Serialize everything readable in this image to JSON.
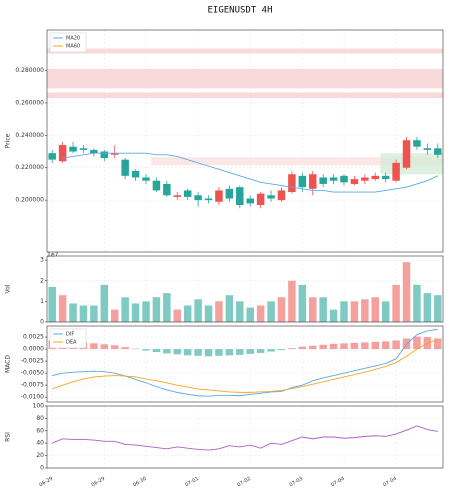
{
  "chart_data": [
    {
      "type": "candlestick",
      "title": "EIGENUSDT  4H",
      "ylabel": "Price",
      "up_color": "#ef5350",
      "down_color": "#26a69a",
      "open": [
        0.229,
        0.224,
        0.233,
        0.232,
        0.231,
        0.23,
        0.228,
        0.225,
        0.218,
        0.214,
        0.212,
        0.21,
        0.202,
        0.206,
        0.203,
        0.201,
        0.199,
        0.207,
        0.208,
        0.201,
        0.197,
        0.203,
        0.2,
        0.205,
        0.215,
        0.207,
        0.214,
        0.214,
        0.215,
        0.21,
        0.212,
        0.213,
        0.215,
        0.212,
        0.22,
        0.237,
        0.232,
        0.232
      ],
      "high": [
        0.231,
        0.236,
        0.236,
        0.234,
        0.232,
        0.231,
        0.234,
        0.226,
        0.219,
        0.216,
        0.214,
        0.212,
        0.205,
        0.207,
        0.205,
        0.203,
        0.208,
        0.209,
        0.209,
        0.203,
        0.205,
        0.206,
        0.208,
        0.218,
        0.217,
        0.218,
        0.216,
        0.216,
        0.216,
        0.215,
        0.216,
        0.217,
        0.217,
        0.225,
        0.239,
        0.239,
        0.235,
        0.235
      ],
      "low": [
        0.223,
        0.223,
        0.229,
        0.229,
        0.227,
        0.224,
        0.226,
        0.213,
        0.212,
        0.21,
        0.205,
        0.202,
        0.2,
        0.2,
        0.196,
        0.198,
        0.197,
        0.199,
        0.195,
        0.196,
        0.195,
        0.199,
        0.199,
        0.204,
        0.205,
        0.203,
        0.208,
        0.21,
        0.209,
        0.209,
        0.21,
        0.212,
        0.211,
        0.211,
        0.219,
        0.231,
        0.228,
        0.226
      ],
      "close": [
        0.225,
        0.234,
        0.23,
        0.231,
        0.229,
        0.226,
        0.229,
        0.215,
        0.214,
        0.212,
        0.206,
        0.203,
        0.203,
        0.202,
        0.2,
        0.2,
        0.206,
        0.201,
        0.197,
        0.198,
        0.204,
        0.201,
        0.206,
        0.216,
        0.208,
        0.216,
        0.21,
        0.212,
        0.211,
        0.213,
        0.214,
        0.215,
        0.213,
        0.223,
        0.237,
        0.233,
        0.231,
        0.228
      ],
      "series": [
        {
          "name": "MA20",
          "color": "#5aa9e6",
          "values": [
            null,
            0.226,
            0.227,
            0.228,
            0.229,
            0.229,
            0.229,
            0.229,
            0.229,
            0.229,
            0.228,
            0.228,
            0.227,
            0.225,
            0.223,
            0.221,
            0.219,
            0.217,
            0.215,
            0.213,
            0.211,
            0.21,
            0.209,
            0.208,
            0.207,
            0.206,
            0.206,
            0.205,
            0.205,
            0.205,
            0.205,
            0.205,
            0.206,
            0.207,
            0.208,
            0.21,
            0.212,
            0.215
          ]
        },
        {
          "name": "MA60",
          "color": "#f5a623",
          "values": [
            null,
            null,
            null,
            null,
            null,
            null,
            null,
            null,
            null,
            null,
            null,
            null,
            null,
            null,
            null,
            null,
            null,
            null,
            null,
            null,
            null,
            null,
            null,
            null,
            null,
            null,
            null,
            null,
            null,
            null,
            null,
            null,
            null,
            null,
            null,
            null,
            null,
            null
          ]
        }
      ],
      "zones": [
        {
          "low": 0.2905,
          "high": 0.2935,
          "start": 0,
          "color": "#f8cfcf"
        },
        {
          "low": 0.269,
          "high": 0.281,
          "start": 0,
          "color": "#f8cfcf"
        },
        {
          "low": 0.263,
          "high": 0.2665,
          "start": 0,
          "color": "#f8cfcf"
        },
        {
          "low": 0.2215,
          "high": 0.2265,
          "start": 10,
          "color": "#fbe0e0"
        },
        {
          "low": 0.216,
          "high": 0.229,
          "start": 32,
          "color": "#d6ecd8"
        }
      ],
      "ylim": [
        0.168,
        0.305
      ],
      "yticks": [
        {
          "value": 0.2,
          "label": "0.200000"
        },
        {
          "value": 0.22,
          "label": "0.220000"
        },
        {
          "value": 0.24,
          "label": "0.240000"
        },
        {
          "value": 0.26,
          "label": "0.260000"
        },
        {
          "value": 0.28,
          "label": "0.280000"
        }
      ],
      "grid": true,
      "legend": "upper left"
    },
    {
      "type": "bar",
      "ylabel": "Vol",
      "offset_label": "1e7",
      "up_color": "#f4a09e",
      "down_color": "#7fcbc3",
      "values": [
        1.7,
        1.3,
        0.9,
        0.8,
        0.8,
        1.8,
        0.6,
        1.2,
        0.9,
        1.0,
        1.2,
        1.4,
        0.6,
        0.8,
        1.1,
        0.8,
        1.0,
        1.3,
        1.0,
        0.7,
        0.8,
        1.0,
        1.2,
        2.0,
        1.8,
        1.2,
        1.2,
        0.6,
        1.0,
        1.0,
        1.1,
        1.2,
        1.0,
        1.8,
        2.9,
        1.8,
        1.4,
        1.3
      ],
      "ylim": [
        0,
        3.2
      ],
      "yticks": [
        0,
        1,
        2,
        3
      ],
      "grid": true
    },
    {
      "type": "macd",
      "ylabel": "MACD",
      "pos_color": "#f4a09e",
      "neg_color": "#7fcbc3",
      "values": [
        0.0018,
        0.0016,
        0.0015,
        0.0014,
        0.0012,
        0.001,
        0.0008,
        0.0004,
        0.0001,
        -0.0003,
        -0.0006,
        -0.0009,
        -0.0011,
        -0.0013,
        -0.0014,
        -0.0015,
        -0.0014,
        -0.0013,
        -0.0012,
        -0.001,
        -0.0008,
        -0.0005,
        -0.0002,
        0.0002,
        0.0005,
        0.0007,
        0.0009,
        0.0011,
        0.0012,
        0.0013,
        0.0014,
        0.0015,
        0.0016,
        0.0018,
        0.0022,
        0.0026,
        0.0025,
        0.0022
      ],
      "series": [
        {
          "name": "DIF",
          "color": "#5aa9e6",
          "values": [
            -0.0055,
            -0.005,
            -0.0048,
            -0.0047,
            -0.0046,
            -0.0047,
            -0.005,
            -0.0056,
            -0.0063,
            -0.007,
            -0.0078,
            -0.0085,
            -0.009,
            -0.0094,
            -0.0097,
            -0.0098,
            -0.0096,
            -0.0096,
            -0.0097,
            -0.0094,
            -0.0092,
            -0.0089,
            -0.0088,
            -0.008,
            -0.0075,
            -0.0066,
            -0.006,
            -0.0055,
            -0.005,
            -0.0045,
            -0.004,
            -0.0035,
            -0.003,
            -0.002,
            0.001,
            0.003,
            0.0038,
            0.0041
          ]
        },
        {
          "name": "DEA",
          "color": "#f5a623",
          "values": [
            -0.0083,
            -0.0075,
            -0.0068,
            -0.0062,
            -0.0058,
            -0.0056,
            -0.0055,
            -0.0056,
            -0.0058,
            -0.0062,
            -0.0066,
            -0.007,
            -0.0075,
            -0.0079,
            -0.0083,
            -0.0085,
            -0.0087,
            -0.0089,
            -0.009,
            -0.009,
            -0.0089,
            -0.0088,
            -0.0086,
            -0.0082,
            -0.0078,
            -0.0073,
            -0.0068,
            -0.0063,
            -0.0058,
            -0.0053,
            -0.0048,
            -0.0042,
            -0.0036,
            -0.0028,
            -0.0015,
            0.0,
            0.0012,
            0.002
          ]
        }
      ],
      "ylim": [
        -0.011,
        0.0048
      ],
      "yticks": [
        {
          "value": -0.01,
          "label": "-0.0100"
        },
        -0.0075,
        {
          "value": -0.005,
          "label": "-0.0050"
        },
        -0.0025,
        {
          "value": 0,
          "label": "0.0000"
        },
        0.0025
      ],
      "grid": true,
      "legend": "upper left"
    },
    {
      "type": "line",
      "ylabel": "RSI",
      "color": "#b05cc6",
      "values": [
        40,
        47,
        46,
        46,
        45,
        43,
        43,
        38,
        37,
        35,
        33,
        31,
        34,
        32,
        30,
        29,
        31,
        36,
        34,
        37,
        32,
        40,
        38,
        44,
        50,
        47,
        50,
        50,
        48,
        49,
        51,
        52,
        51,
        55,
        61,
        68,
        62,
        59
      ],
      "categories": [
        "06-29",
        null,
        null,
        null,
        null,
        "06-29",
        null,
        null,
        null,
        "06-30",
        null,
        null,
        null,
        null,
        "07-01",
        null,
        null,
        null,
        null,
        "07-02",
        null,
        null,
        null,
        null,
        "07-03",
        null,
        null,
        null,
        "07-04",
        null,
        null,
        null,
        null,
        "07-04",
        null,
        null,
        null,
        null
      ],
      "ylim": [
        0,
        100
      ],
      "yticks": [
        0,
        20,
        40,
        60,
        80,
        100
      ],
      "grid": true
    }
  ]
}
